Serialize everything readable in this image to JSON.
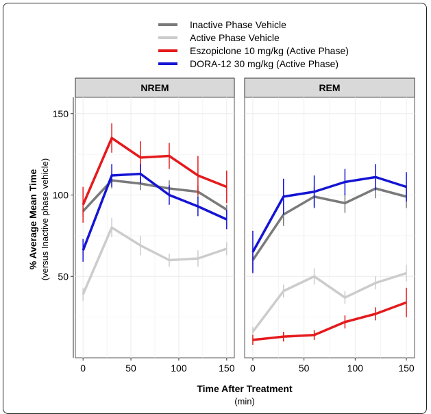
{
  "legend": [
    {
      "label": "Inactive Phase Vehicle",
      "color": "#7a7a7a"
    },
    {
      "label": "Active Phase Vehicle",
      "color": "#cccccc"
    },
    {
      "label": "Eszopiclone 10 mg/kg (Active Phase)",
      "color": "#e41a1c"
    },
    {
      "label": "DORA-12 30 mg/kg (Active Phase)",
      "color": "#1414d4"
    }
  ],
  "ylabel_main": "% Average Mean Time",
  "ylabel_sub": "(versus Inactive phase vehicle)",
  "xlabel_main": "Time After Treatment",
  "xlabel_sub": "(min)",
  "yticks": [
    "150",
    "100",
    "50"
  ],
  "xticks": [
    "0",
    "50",
    "100",
    "150"
  ],
  "chart_data": {
    "type": "line",
    "x": [
      0,
      30,
      60,
      90,
      120,
      150
    ],
    "xlim": [
      -8,
      158
    ],
    "ylim": [
      0,
      160
    ],
    "grid": true,
    "legend_position": "top",
    "panels": [
      {
        "title": "NREM",
        "series": [
          {
            "name": "Inactive Phase Vehicle",
            "color": "#7a7a7a",
            "values": [
              90,
              109,
              107,
              104,
              102,
              91
            ],
            "err": [
              3,
              5,
              4,
              5,
              4,
              3
            ]
          },
          {
            "name": "Active Phase Vehicle",
            "color": "#cccccc",
            "values": [
              39,
              80,
              69,
              60,
              61,
              67
            ],
            "err": [
              4,
              6,
              6,
              4,
              5,
              4
            ]
          },
          {
            "name": "Eszopiclone 10 mg/kg (Active Phase)",
            "color": "#e41a1c",
            "values": [
              94,
              135,
              123,
              124,
              112,
              105
            ],
            "err": [
              11,
              9,
              10,
              8,
              12,
              10
            ]
          },
          {
            "name": "DORA-12 30 mg/kg (Active Phase)",
            "color": "#1414d4",
            "values": [
              66,
              112,
              113,
              100,
              93,
              85
            ],
            "err": [
              7,
              7,
              6,
              6,
              6,
              6
            ]
          }
        ]
      },
      {
        "title": "REM",
        "series": [
          {
            "name": "Inactive Phase Vehicle",
            "color": "#7a7a7a",
            "values": [
              60,
              88,
              99,
              95,
              104,
              99
            ],
            "err": [
              7,
              7,
              6,
              6,
              6,
              7
            ]
          },
          {
            "name": "Active Phase Vehicle",
            "color": "#cccccc",
            "values": [
              16,
              41,
              50,
              37,
              46,
              52
            ],
            "err": [
              3,
              4,
              5,
              4,
              4,
              5
            ]
          },
          {
            "name": "Eszopiclone 10 mg/kg (Active Phase)",
            "color": "#e41a1c",
            "values": [
              11,
              13,
              14,
              22,
              27,
              34
            ],
            "err": [
              3,
              3,
              3,
              4,
              4,
              9
            ]
          },
          {
            "name": "DORA-12 30 mg/kg (Active Phase)",
            "color": "#1414d4",
            "values": [
              65,
              99,
              102,
              108,
              111,
              105
            ],
            "err": [
              13,
              11,
              10,
              8,
              8,
              9
            ]
          }
        ]
      }
    ]
  }
}
